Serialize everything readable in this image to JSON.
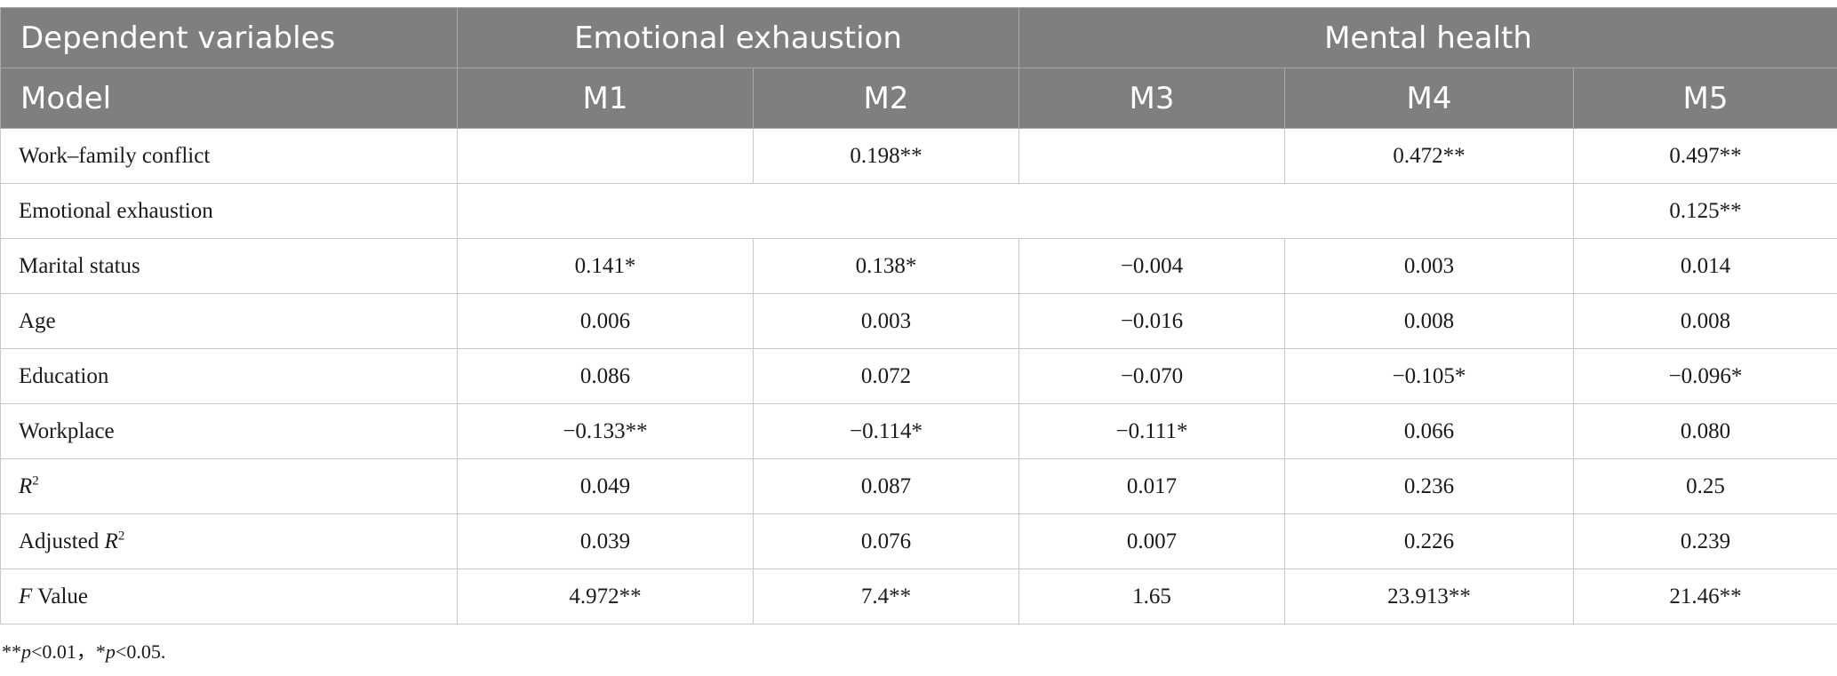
{
  "header": {
    "row1": {
      "dependent_variables": "Dependent variables",
      "emotional_exhaustion": "Emotional exhaustion",
      "mental_health": "Mental health"
    },
    "row2": {
      "model": "Model",
      "models": [
        "M1",
        "M2",
        "M3",
        "M4",
        "M5"
      ]
    }
  },
  "rows": {
    "wfc": {
      "label": "Work–family conflict",
      "m2": "0.198**",
      "m4": "0.472**",
      "m5": "0.497**"
    },
    "ee": {
      "label": "Emotional exhaustion",
      "m5": "0.125**"
    },
    "marital": {
      "label": "Marital status",
      "values": [
        "0.141*",
        "0.138*",
        "−0.004",
        "0.003",
        "0.014"
      ]
    },
    "age": {
      "label": "Age",
      "values": [
        "0.006",
        "0.003",
        "−0.016",
        "0.008",
        "0.008"
      ]
    },
    "education": {
      "label": "Education",
      "values": [
        "0.086",
        "0.072",
        "−0.070",
        "−0.105*",
        "−0.096*"
      ]
    },
    "workplace": {
      "label": "Workplace",
      "values": [
        "−0.133**",
        "−0.114*",
        "−0.111*",
        "0.066",
        "0.080"
      ]
    },
    "r2": {
      "label_var": "R",
      "label_sup": "2",
      "values": [
        "0.049",
        "0.087",
        "0.017",
        "0.236",
        "0.25"
      ]
    },
    "adj_r2": {
      "label_prefix": "Adjusted ",
      "label_var": "R",
      "label_sup": "2",
      "values": [
        "0.039",
        "0.076",
        "0.007",
        "0.226",
        "0.239"
      ]
    },
    "f": {
      "label_var": "F",
      "label_suffix": " Value",
      "values": [
        "4.972**",
        "7.4**",
        "1.65",
        "23.913**",
        "21.46**"
      ]
    }
  },
  "note": {
    "part1_stars": "**",
    "part1_var": "p",
    "part1_rest": "<0.01，",
    "part2_stars": "*",
    "part2_var": "p",
    "part2_rest": "<0.05."
  }
}
